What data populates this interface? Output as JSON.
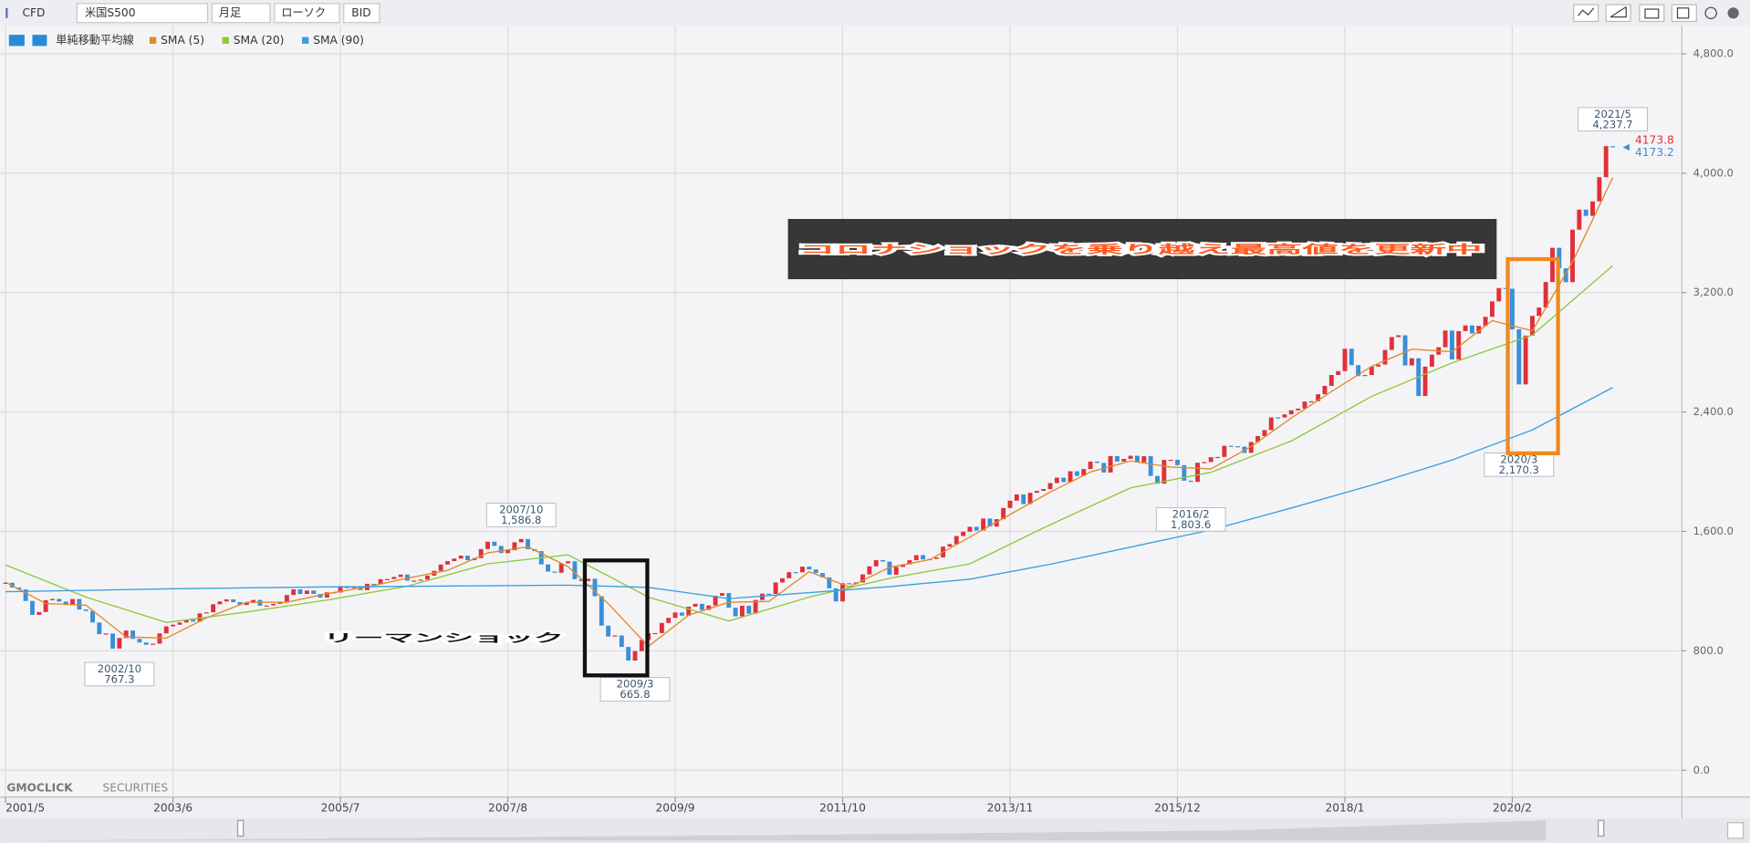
{
  "toolbar": {
    "market": "CFD",
    "symbol": "米国S500",
    "period": "月足",
    "style": "ローソク",
    "price_type": "BID"
  },
  "overlays": {
    "corona": "コロナショックを乗り越え最高値を更新中",
    "lehman": "リーマンショック"
  },
  "watermark": {
    "brand": "GMOCLICK",
    "sub": "SECURITIES"
  },
  "chart_data": {
    "type": "candlestick",
    "indicator_label": "単純移動平均線",
    "grid": true,
    "ylim": [
      0,
      4800
    ],
    "yticks": [
      {
        "value": 0,
        "label": "0.0"
      },
      {
        "value": 800,
        "label": "800.0"
      },
      {
        "value": 1600,
        "label": "1,600.0"
      },
      {
        "value": 2400,
        "label": "2,400.0"
      },
      {
        "value": 3200,
        "label": "3,200.0"
      },
      {
        "value": 4000,
        "label": "4,000.0"
      },
      {
        "value": 4800,
        "label": "4,800.0"
      }
    ],
    "xticks": [
      "2001/5",
      "2003/6",
      "2005/7",
      "2007/8",
      "2009/9",
      "2011/10",
      "2013/11",
      "2015/12",
      "2018/1",
      "2020/2"
    ],
    "x": [
      "2001/5",
      "2001/6",
      "2001/7",
      "2001/8",
      "2001/9",
      "2001/10",
      "2001/11",
      "2001/12",
      "2002/1",
      "2002/2",
      "2002/3",
      "2002/4",
      "2002/5",
      "2002/6",
      "2002/7",
      "2002/8",
      "2002/9",
      "2002/10",
      "2002/11",
      "2002/12",
      "2003/1",
      "2003/2",
      "2003/3",
      "2003/4",
      "2003/5",
      "2003/6",
      "2003/7",
      "2003/8",
      "2003/9",
      "2003/10",
      "2003/11",
      "2003/12",
      "2004/1",
      "2004/2",
      "2004/3",
      "2004/4",
      "2004/5",
      "2004/6",
      "2004/7",
      "2004/8",
      "2004/9",
      "2004/10",
      "2004/11",
      "2004/12",
      "2005/1",
      "2005/2",
      "2005/3",
      "2005/4",
      "2005/5",
      "2005/6",
      "2005/7",
      "2005/8",
      "2005/9",
      "2005/10",
      "2005/11",
      "2005/12",
      "2006/1",
      "2006/2",
      "2006/3",
      "2006/4",
      "2006/5",
      "2006/6",
      "2006/7",
      "2006/8",
      "2006/9",
      "2006/10",
      "2006/11",
      "2006/12",
      "2007/1",
      "2007/2",
      "2007/3",
      "2007/4",
      "2007/5",
      "2007/6",
      "2007/7",
      "2007/8",
      "2007/9",
      "2007/10",
      "2007/11",
      "2007/12",
      "2008/1",
      "2008/2",
      "2008/3",
      "2008/4",
      "2008/5",
      "2008/6",
      "2008/7",
      "2008/8",
      "2008/9",
      "2008/10",
      "2008/11",
      "2008/12",
      "2009/1",
      "2009/2",
      "2009/3",
      "2009/4",
      "2009/5",
      "2009/6",
      "2009/7",
      "2009/8",
      "2009/9",
      "2009/10",
      "2009/11",
      "2009/12",
      "2010/1",
      "2010/2",
      "2010/3",
      "2010/4",
      "2010/5",
      "2010/6",
      "2010/7",
      "2010/8",
      "2010/9",
      "2010/10",
      "2010/11",
      "2010/12",
      "2011/1",
      "2011/2",
      "2011/3",
      "2011/4",
      "2011/5",
      "2011/6",
      "2011/7",
      "2011/8",
      "2011/9",
      "2011/10",
      "2011/11",
      "2011/12",
      "2012/1",
      "2012/2",
      "2012/3",
      "2012/4",
      "2012/5",
      "2012/6",
      "2012/7",
      "2012/8",
      "2012/9",
      "2012/10",
      "2012/11",
      "2012/12",
      "2013/1",
      "2013/2",
      "2013/3",
      "2013/4",
      "2013/5",
      "2013/6",
      "2013/7",
      "2013/8",
      "2013/9",
      "2013/10",
      "2013/11",
      "2013/12",
      "2014/1",
      "2014/2",
      "2014/3",
      "2014/4",
      "2014/5",
      "2014/6",
      "2014/7",
      "2014/8",
      "2014/9",
      "2014/10",
      "2014/11",
      "2014/12",
      "2015/1",
      "2015/2",
      "2015/3",
      "2015/4",
      "2015/5",
      "2015/6",
      "2015/7",
      "2015/8",
      "2015/9",
      "2015/10",
      "2015/11",
      "2015/12",
      "2016/1",
      "2016/2",
      "2016/3",
      "2016/4",
      "2016/5",
      "2016/6",
      "2016/7",
      "2016/8",
      "2016/9",
      "2016/10",
      "2016/11",
      "2016/12",
      "2017/1",
      "2017/2",
      "2017/3",
      "2017/4",
      "2017/5",
      "2017/6",
      "2017/7",
      "2017/8",
      "2017/9",
      "2017/10",
      "2017/11",
      "2017/12",
      "2018/1",
      "2018/2",
      "2018/3",
      "2018/4",
      "2018/5",
      "2018/6",
      "2018/7",
      "2018/8",
      "2018/9",
      "2018/10",
      "2018/11",
      "2018/12",
      "2019/1",
      "2019/2",
      "2019/3",
      "2019/4",
      "2019/5",
      "2019/6",
      "2019/7",
      "2019/8",
      "2019/9",
      "2019/10",
      "2019/11",
      "2019/12",
      "2020/1",
      "2020/2",
      "2020/3",
      "2020/4",
      "2020/5",
      "2020/6",
      "2020/7",
      "2020/8",
      "2020/9",
      "2020/10",
      "2020/11",
      "2020/12",
      "2021/1",
      "2021/2",
      "2021/3",
      "2021/4",
      "2021/5"
    ],
    "candles": {
      "up_color": "#e0303a",
      "down_color": "#3a8fd8",
      "values": [
        1256,
        1224,
        1211,
        1134,
        1041,
        1060,
        1139,
        1148,
        1130,
        1107,
        1147,
        1077,
        1067,
        990,
        912,
        916,
        815,
        886,
        936,
        880,
        856,
        841,
        848,
        917,
        964,
        975,
        990,
        1008,
        996,
        1051,
        1058,
        1112,
        1131,
        1145,
        1126,
        1107,
        1121,
        1141,
        1102,
        1104,
        1115,
        1130,
        1174,
        1212,
        1181,
        1204,
        1181,
        1157,
        1192,
        1191,
        1234,
        1220,
        1229,
        1207,
        1249,
        1248,
        1280,
        1281,
        1295,
        1311,
        1270,
        1270,
        1277,
        1304,
        1336,
        1378,
        1401,
        1418,
        1438,
        1407,
        1421,
        1482,
        1531,
        1503,
        1455,
        1474,
        1527,
        1549,
        1481,
        1468,
        1379,
        1331,
        1323,
        1386,
        1400,
        1280,
        1267,
        1283,
        1166,
        969,
        896,
        903,
        826,
        735,
        798,
        873,
        919,
        919,
        987,
        1021,
        1057,
        1036,
        1096,
        1115,
        1074,
        1104,
        1169,
        1187,
        1089,
        1031,
        1102,
        1049,
        1141,
        1183,
        1181,
        1258,
        1286,
        1327,
        1326,
        1364,
        1345,
        1321,
        1292,
        1219,
        1131,
        1253,
        1247,
        1258,
        1312,
        1366,
        1408,
        1398,
        1310,
        1362,
        1379,
        1407,
        1441,
        1412,
        1416,
        1426,
        1498,
        1515,
        1569,
        1598,
        1631,
        1606,
        1686,
        1633,
        1682,
        1757,
        1806,
        1848,
        1783,
        1859,
        1872,
        1884,
        1924,
        1960,
        1931,
        2003,
        1972,
        2018,
        2068,
        2059,
        1995,
        2105,
        2068,
        2086,
        2107,
        2063,
        2104,
        1972,
        1920,
        2079,
        2080,
        2044,
        1940,
        1932,
        2060,
        2065,
        2097,
        2099,
        2174,
        2171,
        2168,
        2126,
        2199,
        2239,
        2279,
        2364,
        2363,
        2384,
        2412,
        2423,
        2470,
        2472,
        2519,
        2575,
        2648,
        2674,
        2824,
        2714,
        2641,
        2648,
        2705,
        2718,
        2816,
        2902,
        2914,
        2712,
        2760,
        2507,
        2704,
        2784,
        2834,
        2946,
        2752,
        2942,
        2980,
        2926,
        2977,
        3038,
        3141,
        3231,
        3226,
        2954,
        2585,
        2912,
        3044,
        3100,
        3271,
        3500,
        3363,
        3270,
        3622,
        3756,
        3714,
        3811,
        3973,
        4181,
        4174
      ]
    },
    "series": [
      {
        "name": "SMA (5)",
        "color": "#e08a2c",
        "x": [
          "2001/5",
          "2001/11",
          "2002/5",
          "2002/11",
          "2003/5",
          "2003/11",
          "2004/5",
          "2004/11",
          "2005/5",
          "2005/11",
          "2006/5",
          "2006/11",
          "2007/5",
          "2007/11",
          "2008/5",
          "2008/11",
          "2009/5",
          "2009/11",
          "2010/5",
          "2010/11",
          "2011/5",
          "2011/11",
          "2012/5",
          "2012/11",
          "2013/5",
          "2013/11",
          "2014/5",
          "2014/11",
          "2015/5",
          "2015/11",
          "2016/5",
          "2016/11",
          "2017/5",
          "2017/11",
          "2018/5",
          "2018/11",
          "2019/5",
          "2019/11",
          "2020/5",
          "2020/11",
          "2021/5"
        ],
        "values": [
          1260,
          1117,
          1106,
          893,
          885,
          1021,
          1126,
          1125,
          1183,
          1228,
          1287,
          1339,
          1456,
          1497,
          1364,
          1116,
          830,
          1039,
          1125,
          1131,
          1330,
          1228,
          1359,
          1411,
          1562,
          1713,
          1864,
          1998,
          2072,
          2031,
          2019,
          2168,
          2360,
          2537,
          2706,
          2821,
          2804,
          3012,
          2944,
          3405,
          3971
        ]
      },
      {
        "name": "SMA (20)",
        "color": "#8cc83c",
        "x": [
          "2001/5",
          "2002/5",
          "2003/5",
          "2004/5",
          "2005/5",
          "2006/5",
          "2007/5",
          "2008/5",
          "2009/5",
          "2010/5",
          "2011/5",
          "2012/5",
          "2013/5",
          "2014/5",
          "2015/5",
          "2016/5",
          "2017/5",
          "2018/5",
          "2019/5",
          "2020/5",
          "2021/5"
        ],
        "values": [
          1375,
          1160,
          990,
          1060,
          1140,
          1233,
          1383,
          1443,
          1160,
          1000,
          1160,
          1286,
          1383,
          1645,
          1892,
          1996,
          2206,
          2505,
          2729,
          2916,
          3380
        ]
      },
      {
        "name": "SMA (90)",
        "color": "#3a9ee0",
        "x": [
          "2001/5",
          "2002/5",
          "2003/5",
          "2004/5",
          "2005/5",
          "2006/5",
          "2007/5",
          "2008/5",
          "2009/5",
          "2010/5",
          "2011/5",
          "2012/5",
          "2013/5",
          "2014/5",
          "2015/5",
          "2016/5",
          "2017/5",
          "2018/5",
          "2019/5",
          "2020/5",
          "2021/5"
        ],
        "values": [
          1196,
          1205,
          1215,
          1222,
          1228,
          1232,
          1236,
          1240,
          1225,
          1150,
          1190,
          1230,
          1280,
          1380,
          1495,
          1610,
          1757,
          1910,
          2078,
          2280,
          2564
        ]
      }
    ],
    "annotations": [
      {
        "kind": "low",
        "date": "2002/10",
        "value": 767.3
      },
      {
        "kind": "high",
        "date": "2007/10",
        "value": 1586.8,
        "value_label": "1,586.8"
      },
      {
        "kind": "low",
        "date": "2009/3",
        "value": 665.8
      },
      {
        "kind": "low",
        "date": "2016/2",
        "value": 1803.6,
        "value_label": "1,803.6"
      },
      {
        "kind": "low",
        "date": "2020/3",
        "value": 2170.3,
        "value_label": "2,170.3"
      },
      {
        "kind": "high",
        "date": "2021/5",
        "value": 4237.7,
        "value_label": "4,237.7"
      }
    ],
    "last_price": {
      "ask": 4173.8,
      "ask_color": "#e0303a",
      "bid": 4173.2,
      "bid_color": "#3a8fd8"
    }
  }
}
